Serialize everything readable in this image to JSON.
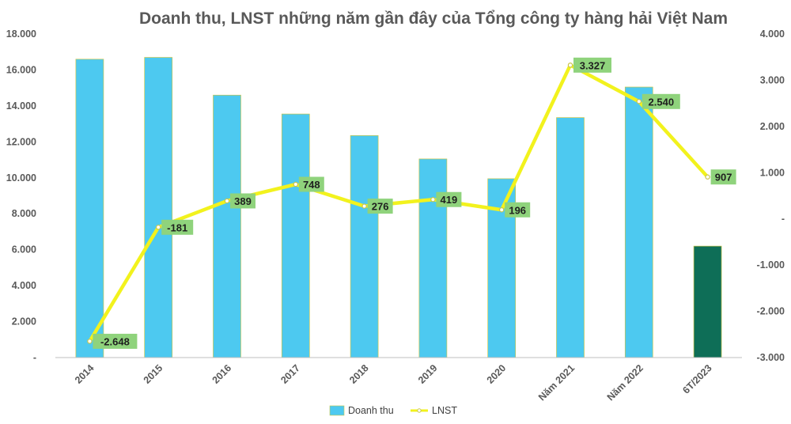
{
  "chart_data": {
    "type": "bar-line",
    "title": "Doanh thu, LNST những năm gần đây của Tổng công ty hàng hải Việt Nam",
    "categories": [
      "2014",
      "2015",
      "2016",
      "2017",
      "2018",
      "2019",
      "2020",
      "Năm 2021",
      "Năm 2022",
      "6T/2023"
    ],
    "series": [
      {
        "name": "Doanh thu",
        "type": "bar",
        "axis": "left",
        "values": [
          16600,
          16700,
          14600,
          13550,
          12350,
          11050,
          9950,
          13350,
          15050,
          6200
        ],
        "color": "#4DC9F0",
        "highlight_color": "#0E6E57"
      },
      {
        "name": "LNST",
        "type": "line",
        "axis": "right",
        "values": [
          -2648,
          -181,
          389,
          748,
          276,
          419,
          196,
          3327,
          2540,
          907
        ],
        "labels": [
          "-2.648",
          "-181",
          "389",
          "748",
          "276",
          "419",
          "196",
          "3.327",
          "2.540",
          "907"
        ],
        "color": "#F2F21D",
        "label_bg": "#8FD37C"
      }
    ],
    "y_left": {
      "min": 0,
      "max": 18000,
      "ticks": [
        0,
        2000,
        4000,
        6000,
        8000,
        10000,
        12000,
        14000,
        16000,
        18000
      ],
      "tick_labels": [
        "-",
        "2.000",
        "4.000",
        "6.000",
        "8.000",
        "10.000",
        "12.000",
        "14.000",
        "16.000",
        "18.000"
      ]
    },
    "y_right": {
      "min": -3000,
      "max": 4000,
      "ticks": [
        -3000,
        -2000,
        -1000,
        0,
        1000,
        2000,
        3000,
        4000
      ],
      "tick_labels": [
        "-3.000",
        "-2.000",
        "-1.000",
        "-",
        "1.000",
        "2.000",
        "3.000",
        "4.000"
      ]
    },
    "legend": {
      "position": "bottom",
      "items": [
        "Doanh thu",
        "LNST"
      ]
    },
    "grid": false
  }
}
